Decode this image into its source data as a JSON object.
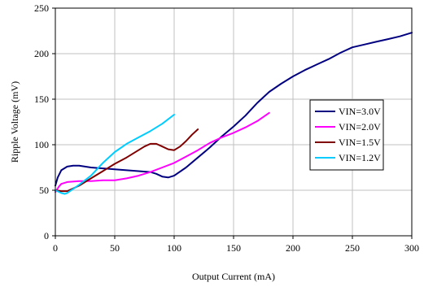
{
  "chart_data": {
    "type": "line",
    "xlabel": "Output Current (mA)",
    "ylabel": "Ripple Voltage (mV)",
    "xlim": [
      0,
      300
    ],
    "ylim": [
      0,
      250
    ],
    "x_ticks": [
      0,
      50,
      100,
      150,
      200,
      250,
      300
    ],
    "y_ticks": [
      0,
      50,
      100,
      150,
      200,
      250
    ],
    "grid": true,
    "legend_position": "right",
    "series": [
      {
        "name": "VIN=3.0V",
        "color": "#000080",
        "x": [
          0,
          2,
          5,
          10,
          15,
          20,
          30,
          40,
          50,
          60,
          70,
          80,
          85,
          90,
          95,
          100,
          110,
          120,
          130,
          140,
          150,
          160,
          170,
          180,
          190,
          200,
          210,
          220,
          230,
          240,
          250,
          260,
          270,
          280,
          290,
          300
        ],
        "y": [
          55,
          64,
          72,
          76,
          77,
          77,
          75,
          74,
          73,
          72,
          71,
          70,
          68,
          65,
          64,
          66,
          75,
          86,
          97,
          109,
          120,
          132,
          146,
          158,
          167,
          175,
          182,
          188,
          194,
          201,
          207,
          210,
          213,
          216,
          219,
          223
        ]
      },
      {
        "name": "VIN=2.0V",
        "color": "#ff00ff",
        "x": [
          0,
          3,
          5,
          10,
          20,
          30,
          40,
          50,
          60,
          70,
          80,
          90,
          100,
          110,
          120,
          130,
          140,
          150,
          160,
          170,
          180
        ],
        "y": [
          48,
          54,
          57,
          59,
          60,
          60,
          61,
          61,
          63,
          66,
          70,
          75,
          80,
          87,
          94,
          102,
          108,
          113,
          119,
          126,
          135
        ]
      },
      {
        "name": "VIN=1.5V",
        "color": "#800000",
        "x": [
          0,
          5,
          10,
          20,
          30,
          40,
          50,
          60,
          70,
          75,
          80,
          85,
          90,
          95,
          100,
          105,
          110,
          115,
          120
        ],
        "y": [
          50,
          49,
          49,
          55,
          63,
          71,
          79,
          86,
          94,
          98,
          101,
          101,
          98,
          95,
          94,
          98,
          104,
          111,
          117
        ]
      },
      {
        "name": "VIN=1.2V",
        "color": "#00ccff",
        "x": [
          0,
          5,
          8,
          10,
          20,
          30,
          40,
          50,
          60,
          70,
          80,
          90,
          100
        ],
        "y": [
          50,
          47,
          46,
          47,
          56,
          66,
          80,
          92,
          101,
          108,
          115,
          123,
          133
        ]
      }
    ]
  }
}
